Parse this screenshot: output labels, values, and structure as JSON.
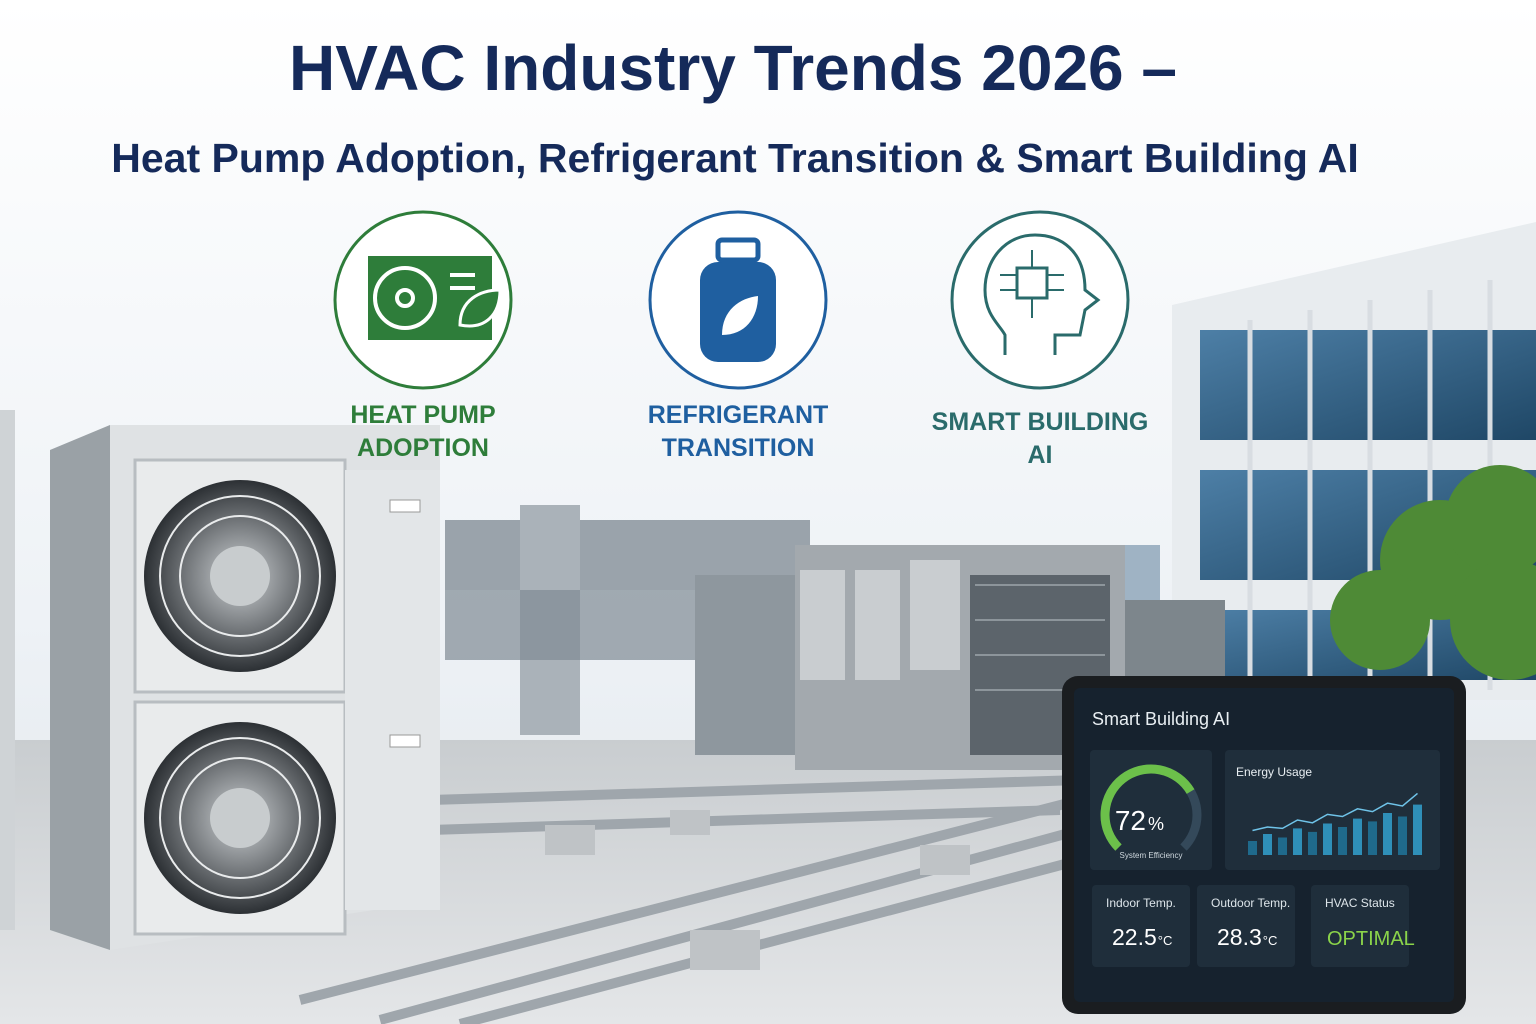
{
  "header": {
    "title": "HVAC Industry Trends 2026 –",
    "subtitle": "Heat Pump Adoption, Refrigerant Transition & Smart Building AI"
  },
  "features": [
    {
      "lines": [
        "HEAT PUMP",
        "ADOPTION"
      ],
      "color": "#2e7d3a"
    },
    {
      "lines": [
        "REFRIGERANT",
        "TRANSITION"
      ],
      "color": "#1f5fa0"
    },
    {
      "lines": [
        "SMART BUILDING",
        "AI"
      ],
      "color": "#2a6b6b"
    }
  ],
  "tablet": {
    "title": "Smart Building AI",
    "gauge": {
      "value": 72,
      "unit": "%",
      "label": "System Efficiency",
      "max": 100
    },
    "energy": {
      "title": "Energy Usage",
      "ylim": [
        0,
        100
      ],
      "bars": [
        20,
        30,
        25,
        38,
        33,
        45,
        40,
        52,
        48,
        60,
        55,
        72
      ],
      "line": [
        35,
        40,
        38,
        50,
        46,
        58,
        55,
        66,
        62,
        74,
        70,
        88
      ]
    },
    "cards": [
      {
        "label": "Indoor Temp.",
        "value": "22.5",
        "unit": "°C"
      },
      {
        "label": "Outdoor Temp.",
        "value": "28.3",
        "unit": "°C"
      },
      {
        "label": "HVAC Status",
        "value": "OPTIMAL"
      }
    ]
  }
}
